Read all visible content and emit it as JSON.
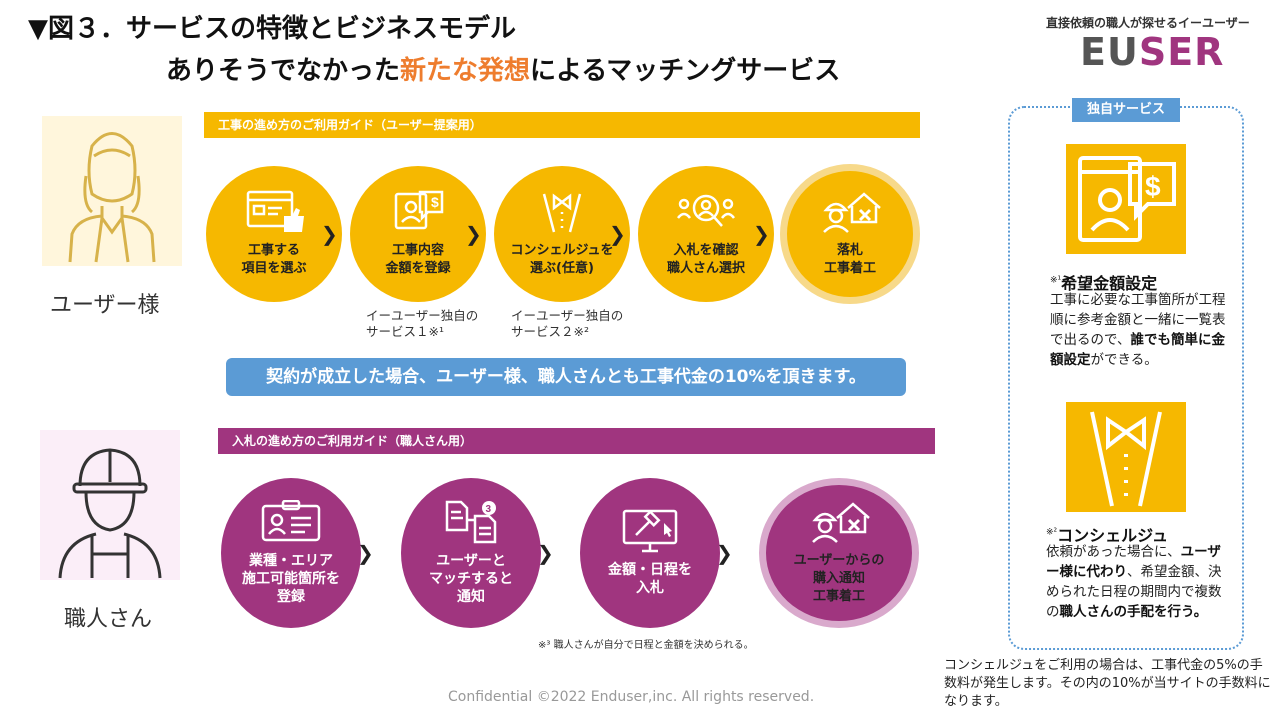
{
  "title": {
    "line1": "▼図３．サービスの特徴とビジネスモデル",
    "line2_pre": "ありそうでなかった",
    "line2_highlight": "新たな発想",
    "line2_post": "によるマッチングサービス"
  },
  "brand": {
    "tagline": "直接依頼の職人が探せるイーユーザー",
    "logo_part1": "EU",
    "logo_part2": "SER"
  },
  "colors": {
    "accent_yellow": "#f6b800",
    "accent_purple": "#a0357f",
    "accent_blue": "#5b9bd5",
    "highlight_orange": "#ee7d2e"
  },
  "user": {
    "label": "ユーザー様",
    "guide_title": "工事の進め方のご利用ガイド（ユーザー提案用）",
    "steps": [
      {
        "label": "工事する\n項目を選ぶ",
        "icon": "thumbs-up-web-icon"
      },
      {
        "label": "工事内容\n金額を登録",
        "icon": "price-profile-icon"
      },
      {
        "label": "コンシェルジュを\n選ぶ(任意)",
        "icon": "concierge-bowtie-icon"
      },
      {
        "label": "入札を確認\n職人さん選択",
        "icon": "search-people-icon"
      },
      {
        "label": "落札\n工事着工",
        "icon": "worker-house-icon"
      }
    ],
    "notes": [
      "イーユーザー独自の\nサービス１※¹",
      "イーユーザー独自の\nサービス２※²"
    ]
  },
  "contract_text": "契約が成立した場合、ユーザー様、職人さんとも工事代金の10%を頂きます。",
  "craftsman": {
    "label": "職人さん",
    "guide_title": "入札の進め方のご利用ガイド（職人さん用）",
    "steps": [
      {
        "label": "業種・エリア\n施工可能箇所を\n登録",
        "icon": "id-card-icon"
      },
      {
        "label": "ユーザーと\nマッチすると\n通知",
        "icon": "documents-match-icon"
      },
      {
        "label": "金額・日程を\n入札",
        "icon": "auction-monitor-icon"
      },
      {
        "label": "ユーザーからの\n購入通知\n工事着工",
        "icon": "worker-house-icon"
      }
    ],
    "footnote": "※³ 職人さんが自分で日程と金額を決められる。"
  },
  "side": {
    "title": "独自サービス",
    "item1": {
      "mark": "※¹",
      "head": "希望金額設定",
      "text_1": "工事に必要な工事箇所が工程順に参考金額と一緒に一覧表で出るので、",
      "text_bold": "誰でも簡単に金額設定",
      "text_2": "ができる。"
    },
    "item2": {
      "mark": "※²",
      "head": "コンシェルジュ",
      "text_1": "依頼があった場合に、",
      "text_bold1": "ユーザー様に代わり",
      "text_2": "、希望金額、決められた日程の期間内で複数の",
      "text_bold2": "職人さんの手配を行う。"
    }
  },
  "bottom_note": "コンシェルジュをご利用の場合は、工事代金の5%の手数料が発生します。その内の10%が当サイトの手数料になります。",
  "confidential": "Confidential ©2022 Enduser,inc. All rights reserved."
}
